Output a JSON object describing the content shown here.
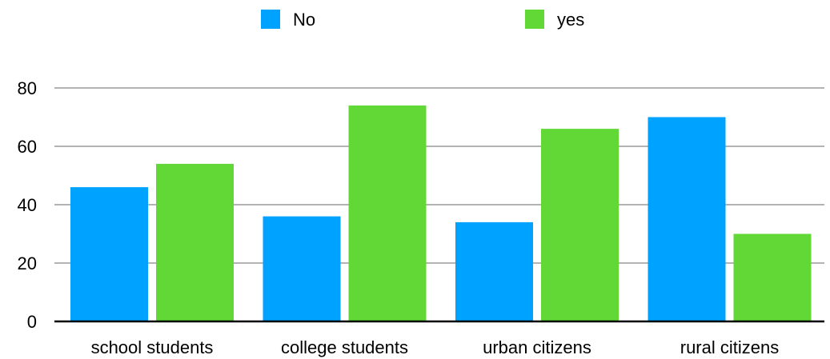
{
  "chart_data": {
    "type": "bar",
    "title": "",
    "xlabel": "",
    "ylabel": "",
    "categories": [
      "school students",
      "college students",
      "urban citizens",
      "rural citizens"
    ],
    "series": [
      {
        "name": "No",
        "values": [
          46,
          36,
          34,
          70
        ],
        "color": "#00a2ff"
      },
      {
        "name": "yes",
        "values": [
          54,
          74,
          66,
          30
        ],
        "color": "#61d836"
      }
    ],
    "ylim": [
      0,
      80
    ],
    "yticks": [
      0,
      20,
      40,
      60,
      80
    ],
    "grid": true,
    "legend_position": "top"
  }
}
